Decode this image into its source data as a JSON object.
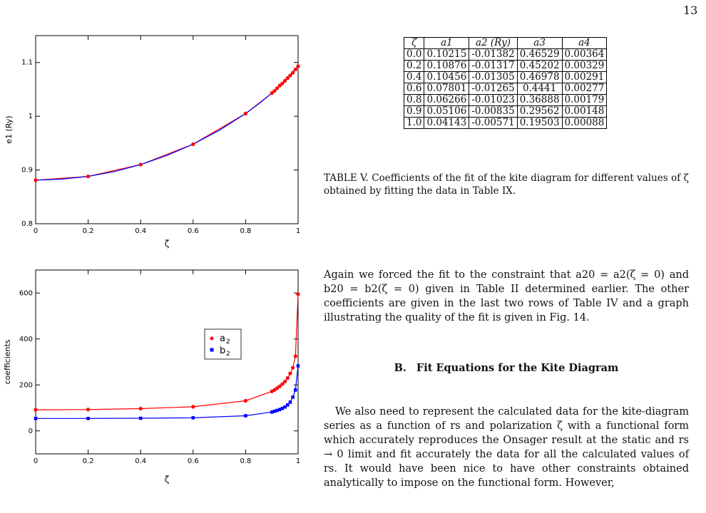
{
  "page_number": "13",
  "table": {
    "headers": [
      "ζ",
      "a1",
      "a2 (Ry)",
      "a3",
      "a4"
    ],
    "rows": [
      [
        "0.0",
        "0.10215",
        "-0.01382",
        "0.46529",
        "0.00364"
      ],
      [
        "0.2",
        "0.10876",
        "-0.01317",
        "0.45202",
        "0.00329"
      ],
      [
        "0.4",
        "0.10456",
        "-0.01305",
        "0.46978",
        "0.00291"
      ],
      [
        "0.6",
        "0.07801",
        "-0.01265",
        "0.4441",
        "0.00277"
      ],
      [
        "0.8",
        "0.06266",
        "-0.01023",
        "0.36888",
        "0.00179"
      ],
      [
        "0.9",
        "0.05106",
        "-0.00835",
        "0.29562",
        "0.00148"
      ],
      [
        "1.0",
        "0.04143",
        "-0.00571",
        "0.19503",
        "0.00088"
      ]
    ],
    "caption": "TABLE V. Coefficients of the fit of the kite diagram for different values of ζ obtained by fitting the data in Table IX."
  },
  "paragraph1": "Again we forced the fit to the constraint that a20 = a2(ζ = 0) and b20 = b2(ζ = 0) given in Table II determined earlier. The other coefficients are given in the last two rows of Table IV and a graph illustrating the quality of the fit is given in Fig. 14.",
  "section": {
    "number": "B.",
    "title": "Fit Equations for the Kite Diagram"
  },
  "paragraph2": "We also need to represent the calculated data for the kite-diagram series as a function of rs and polarization ζ with a functional form which accurately reproduces the Onsager result at the static and rs → 0 limit and fit accurately the data for all the calculated values of rs. It would have been nice to have other constraints obtained analytically to impose on the functional form. However,",
  "chart_data": [
    {
      "type": "line",
      "xlabel": "ζ",
      "ylabel": "e1 (Ry)",
      "xlim": [
        0,
        1
      ],
      "ylim": [
        0.8,
        1.15
      ],
      "x_ticks": [
        "0",
        "0.2",
        "0.4",
        "0.6",
        "0.8",
        "1"
      ],
      "y_ticks": [
        "0.8",
        "0.9",
        "1",
        "1.1"
      ],
      "series": [
        {
          "color": "#ff0000",
          "marker": "circle",
          "x": [
            0.0,
            0.2,
            0.4,
            0.6,
            0.8,
            0.9,
            0.91,
            0.92,
            0.93,
            0.94,
            0.95,
            0.96,
            0.97,
            0.98,
            0.99,
            1.0
          ],
          "y": [
            0.881,
            0.888,
            0.91,
            0.948,
            1.005,
            1.043,
            1.047,
            1.052,
            1.057,
            1.061,
            1.066,
            1.071,
            1.076,
            1.081,
            1.087,
            1.093
          ]
        },
        {
          "color": "#0000ff",
          "style": "fit-curve",
          "x": [
            0,
            0.1,
            0.2,
            0.3,
            0.4,
            0.5,
            0.6,
            0.7,
            0.8,
            0.85,
            0.9,
            0.95,
            1.0
          ],
          "y": [
            0.881,
            0.883,
            0.888,
            0.897,
            0.91,
            0.927,
            0.948,
            0.974,
            1.005,
            1.023,
            1.043,
            1.066,
            1.093
          ]
        }
      ]
    },
    {
      "type": "line",
      "xlabel": "ζ",
      "ylabel": "coefficients",
      "xlim": [
        0,
        1
      ],
      "ylim": [
        -100,
        700
      ],
      "x_ticks": [
        "0",
        "0.2",
        "0.4",
        "0.6",
        "0.8",
        "1"
      ],
      "y_ticks": [
        "0",
        "200",
        "400",
        "600"
      ],
      "legend_position": "right",
      "series": [
        {
          "name": "a2",
          "color": "#ff0000",
          "marker": "circle",
          "x": [
            0.0,
            0.2,
            0.4,
            0.6,
            0.8,
            0.9,
            0.91,
            0.92,
            0.93,
            0.94,
            0.95,
            0.96,
            0.97,
            0.98,
            0.99,
            1.0
          ],
          "y": [
            92,
            93,
            97,
            105,
            131,
            172,
            178,
            186,
            194,
            204,
            215,
            230,
            250,
            275,
            325,
            595
          ]
        },
        {
          "name": "b2",
          "color": "#0000ff",
          "marker": "square",
          "x": [
            0.0,
            0.2,
            0.4,
            0.6,
            0.8,
            0.9,
            0.91,
            0.92,
            0.93,
            0.94,
            0.95,
            0.96,
            0.97,
            0.98,
            0.99,
            1.0
          ],
          "y": [
            54,
            54,
            55,
            57,
            66,
            82,
            85,
            89,
            93,
            98,
            104,
            113,
            125,
            147,
            178,
            283
          ]
        }
      ]
    }
  ]
}
